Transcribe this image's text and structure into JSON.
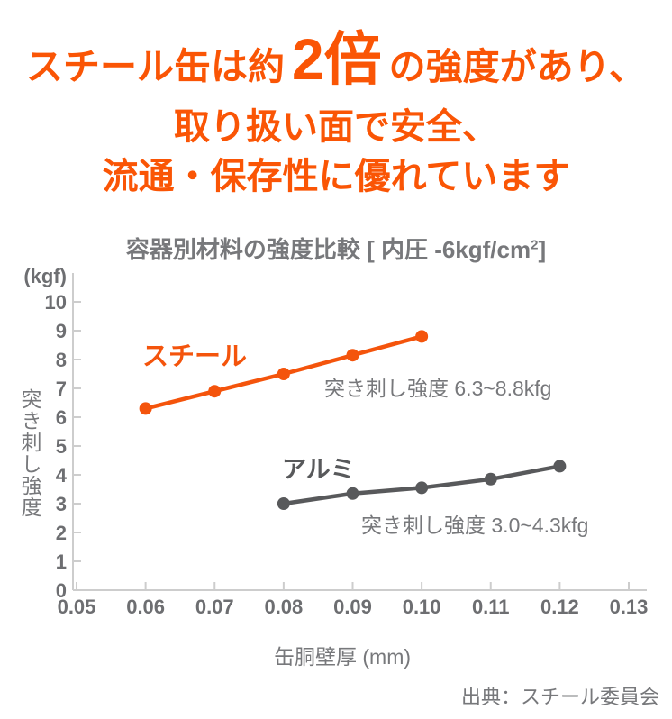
{
  "colors": {
    "headline_orange": "#fa5505",
    "steel": "#f4540c",
    "aluminum": "#58595b",
    "text_gray": "#77787b",
    "tick_gray": "#6d6e71",
    "axis_gray": "#cdcdcd"
  },
  "headline": {
    "line1_pre": "スチール缶は約",
    "line1_big": "2倍",
    "line1_post": "の強度があり、",
    "line2": "取り扱い面で安全、",
    "line3": "流通・保存性に優れています"
  },
  "chart": {
    "title_main": "容器別材料の強度比較 [ 内圧 -6kgf/cm",
    "title_sup": "2",
    "title_close": "]",
    "y_unit": "(kgf)",
    "y_axis_label": "突き刺し強度",
    "x_axis_label": "缶胴壁厚 (mm)",
    "source": "出典：スチール委員会"
  },
  "chart_data": {
    "type": "line",
    "title": "容器別材料の強度比較 [内圧-6kgf/cm2]",
    "xlabel": "缶胴壁厚 (mm)",
    "ylabel": "突き刺し強度 (kgf)",
    "xlim": [
      0.05,
      0.13
    ],
    "ylim": [
      0,
      10
    ],
    "grid": false,
    "x_ticks": [
      0.05,
      0.06,
      0.07,
      0.08,
      0.09,
      0.1,
      0.11,
      0.12,
      0.13
    ],
    "x_tick_labels": [
      "0.05",
      "0.06",
      "0.07",
      "0.08",
      "0.09",
      "0.10",
      "0.11",
      "0.12",
      "0.13"
    ],
    "y_ticks": [
      0,
      1,
      2,
      3,
      4,
      5,
      6,
      7,
      8,
      9,
      10
    ],
    "y_tick_labels": [
      "0",
      "1",
      "2",
      "3",
      "4",
      "5",
      "6",
      "7",
      "8",
      "9",
      "10"
    ],
    "series": [
      {
        "name": "スチール",
        "color": "#f4540c",
        "x": [
          0.06,
          0.07,
          0.08,
          0.09,
          0.1
        ],
        "values": [
          6.3,
          6.9,
          7.5,
          8.15,
          8.8
        ],
        "annotation": "突き刺し強度 6.3~8.8kfg"
      },
      {
        "name": "アルミ",
        "color": "#58595b",
        "x": [
          0.08,
          0.09,
          0.1,
          0.11,
          0.12
        ],
        "values": [
          3.0,
          3.35,
          3.55,
          3.85,
          4.3
        ],
        "annotation": "突き刺し強度 3.0~4.3kfg"
      }
    ]
  }
}
